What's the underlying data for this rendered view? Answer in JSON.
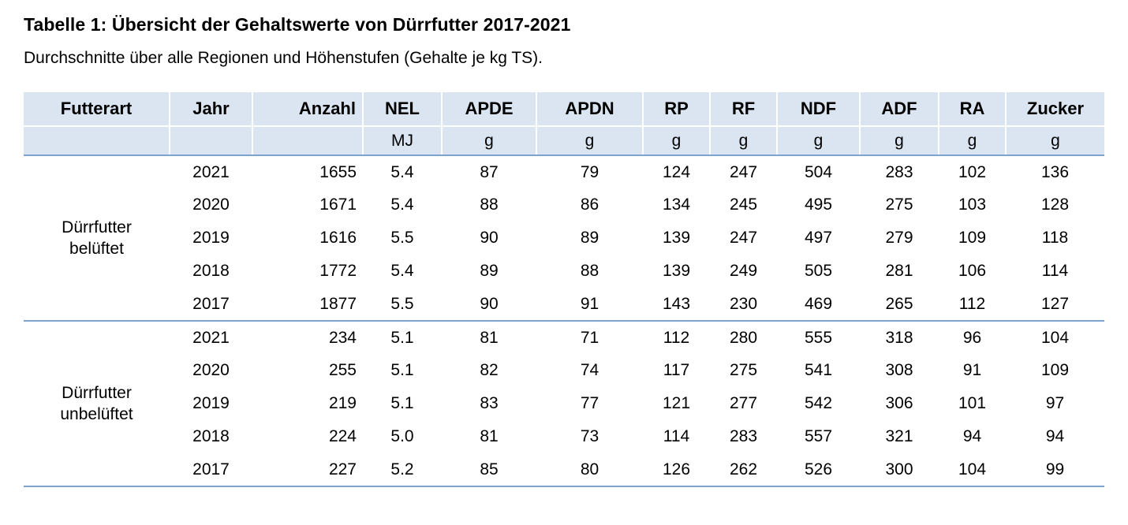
{
  "page": {
    "title": "Tabelle 1: Übersicht der Gehaltswerte von Dürrfutter 2017-2021",
    "subtitle": "Durchschnitte über alle Regionen und Höhenstufen (Gehalte je kg TS)."
  },
  "colors": {
    "header_fill": "#dbe5f1",
    "rule_blue": "#7ba3cc",
    "text": "#000000"
  },
  "table": {
    "columns": [
      {
        "label": "Futterart",
        "unit": ""
      },
      {
        "label": "Jahr",
        "unit": ""
      },
      {
        "label": "Anzahl",
        "unit": ""
      },
      {
        "label": "NEL",
        "unit": "MJ"
      },
      {
        "label": "APDE",
        "unit": "g"
      },
      {
        "label": "APDN",
        "unit": "g"
      },
      {
        "label": "RP",
        "unit": "g"
      },
      {
        "label": "RF",
        "unit": "g"
      },
      {
        "label": "NDF",
        "unit": "g"
      },
      {
        "label": "ADF",
        "unit": "g"
      },
      {
        "label": "RA",
        "unit": "g"
      },
      {
        "label": "Zucker",
        "unit": "g"
      }
    ],
    "groups": [
      {
        "futterart": "Dürrfutter belüftet",
        "rows": [
          [
            "2021",
            "1655",
            "5.4",
            "87",
            "79",
            "124",
            "247",
            "504",
            "283",
            "102",
            "136"
          ],
          [
            "2020",
            "1671",
            "5.4",
            "88",
            "86",
            "134",
            "245",
            "495",
            "275",
            "103",
            "128"
          ],
          [
            "2019",
            "1616",
            "5.5",
            "90",
            "89",
            "139",
            "247",
            "497",
            "279",
            "109",
            "118"
          ],
          [
            "2018",
            "1772",
            "5.4",
            "89",
            "88",
            "139",
            "249",
            "505",
            "281",
            "106",
            "114"
          ],
          [
            "2017",
            "1877",
            "5.5",
            "90",
            "91",
            "143",
            "230",
            "469",
            "265",
            "112",
            "127"
          ]
        ]
      },
      {
        "futterart": "Dürrfutter unbelüftet",
        "rows": [
          [
            "2021",
            "234",
            "5.1",
            "81",
            "71",
            "112",
            "280",
            "555",
            "318",
            "96",
            "104"
          ],
          [
            "2020",
            "255",
            "5.1",
            "82",
            "74",
            "117",
            "275",
            "541",
            "308",
            "91",
            "109"
          ],
          [
            "2019",
            "219",
            "5.1",
            "83",
            "77",
            "121",
            "277",
            "542",
            "306",
            "101",
            "97"
          ],
          [
            "2018",
            "224",
            "5.0",
            "81",
            "73",
            "114",
            "283",
            "557",
            "321",
            "94",
            "94"
          ],
          [
            "2017",
            "227",
            "5.2",
            "85",
            "80",
            "126",
            "262",
            "526",
            "300",
            "104",
            "99"
          ]
        ]
      }
    ]
  }
}
